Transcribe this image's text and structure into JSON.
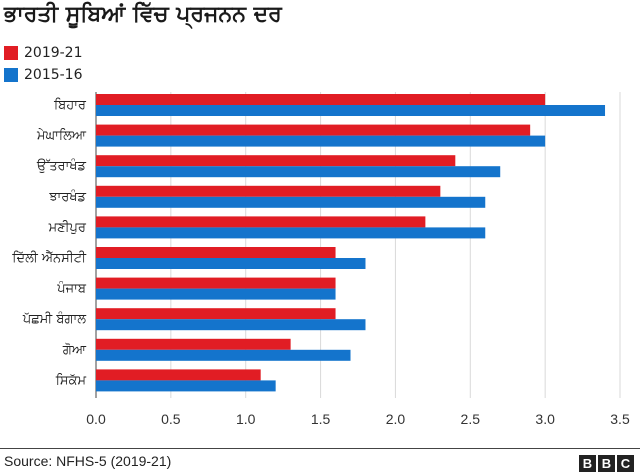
{
  "chart_data": {
    "type": "bar",
    "orientation": "horizontal",
    "title": "ਭਾਰਤੀ ਸੂਬਿਆਂ ਵਿੱਚ ਪ੍ਰਜਨਨ ਦਰ",
    "categories": [
      "ਬਿਹਾਰ",
      "ਮੇਘਾਲਿਆ",
      "ਉੱਤਰਾਖੰਡ",
      "ਝਾਰਖੰਡ",
      "ਮਣੀਪੁਰ",
      "ਦਿੱਲੀ ਐੱਨਸੀਟੀ",
      "ਪੰਜਾਬ",
      "ਪੱਛਮੀ ਬੰਗਾਲ",
      "ਗੋਆ",
      "ਸਿਕੱਮ"
    ],
    "series": [
      {
        "name": "2019-21",
        "color": "#e11d24",
        "values": [
          3.0,
          2.9,
          2.4,
          2.3,
          2.2,
          1.6,
          1.6,
          1.6,
          1.3,
          1.1
        ]
      },
      {
        "name": "2015-16",
        "color": "#1474cc",
        "values": [
          3.4,
          3.0,
          2.7,
          2.6,
          2.6,
          1.8,
          1.6,
          1.8,
          1.7,
          1.2
        ]
      }
    ],
    "xlim": [
      0,
      3.5
    ],
    "xticks": [
      "0.0",
      "0.5",
      "1.0",
      "1.5",
      "2.0",
      "2.5",
      "3.0",
      "3.5"
    ],
    "grid": "vertical",
    "legend": "top-left"
  },
  "footer": {
    "source": "Source: NFHS-5 (2019-21)",
    "logo": [
      "B",
      "B",
      "C"
    ]
  }
}
